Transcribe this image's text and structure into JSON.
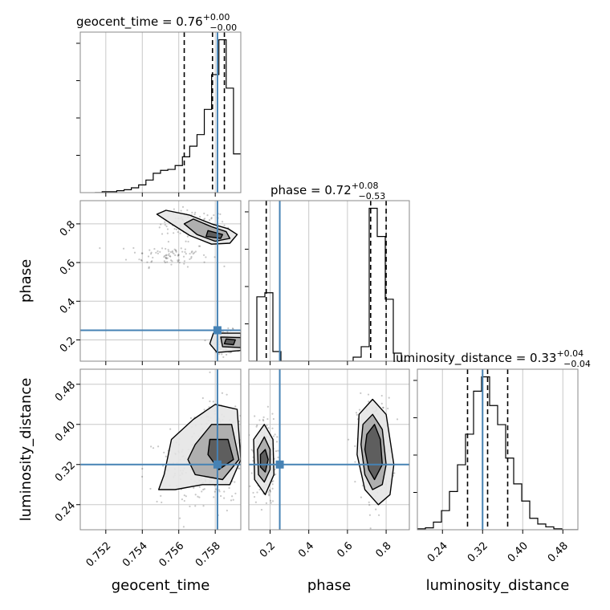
{
  "chart_data": {
    "type": "corner",
    "parameters": [
      "geocent_time",
      "phase",
      "luminosity_distance"
    ],
    "truths": {
      "geocent_time": 0.75812,
      "phase": 0.25,
      "luminosity_distance": 0.32
    },
    "truth_color": "#4682b4",
    "titles": [
      {
        "param": "geocent_time",
        "main": "geocent_time = 0.76",
        "sup": "+0.00",
        "sub": "−0.00"
      },
      {
        "param": "phase",
        "main": "phase = 0.72",
        "sup": "+0.08",
        "sub": "−0.53"
      },
      {
        "param": "luminosity_distance",
        "main": "luminosity_distance = 0.33",
        "sup": "+0.04",
        "sub": "−0.04"
      }
    ],
    "axis_labels": {
      "geocent_time": "geocent_time",
      "phase": "phase",
      "luminosity_distance": "luminosity_distance"
    },
    "ranges": {
      "geocent_time": [
        0.7506,
        0.7594
      ],
      "phase": [
        0.09,
        0.92
      ],
      "luminosity_distance": [
        0.19,
        0.51
      ]
    },
    "ticks": {
      "geocent_time": [
        "0.752",
        "0.754",
        "0.756",
        "0.758"
      ],
      "phase": [
        "0.2",
        "0.4",
        "0.6",
        "0.8"
      ],
      "luminosity_distance": [
        "0.24",
        "0.32",
        "0.40",
        "0.48"
      ]
    },
    "tick_values": {
      "geocent_time": [
        0.752,
        0.754,
        0.756,
        0.758
      ],
      "phase": [
        0.2,
        0.4,
        0.6,
        0.8
      ],
      "luminosity_distance": [
        0.24,
        0.32,
        0.4,
        0.48
      ]
    },
    "quantiles": {
      "geocent_time": [
        0.7563,
        0.75785,
        0.7585
      ],
      "phase": [
        0.18,
        0.72,
        0.8
      ],
      "luminosity_distance": [
        0.29,
        0.33,
        0.37
      ]
    },
    "histograms": {
      "geocent_time": {
        "edges": [
          0.7514,
          0.7518,
          0.7522,
          0.7526,
          0.753,
          0.7534,
          0.7538,
          0.7542,
          0.7546,
          0.755,
          0.7554,
          0.7558,
          0.7562,
          0.7566,
          0.757,
          0.7574,
          0.7578,
          0.7582,
          0.7586,
          0.759,
          0.7594
        ],
        "counts": [
          0,
          1,
          1,
          2,
          3,
          5,
          8,
          13,
          20,
          23,
          24,
          28,
          37,
          48,
          60,
          86,
          122,
          158,
          108,
          40
        ]
      },
      "phase": {
        "edges": [
          0.09,
          0.1315,
          0.173,
          0.2145,
          0.256,
          0.2975,
          0.339,
          0.3805,
          0.422,
          0.4635,
          0.505,
          0.5465,
          0.588,
          0.6295,
          0.671,
          0.7125,
          0.754,
          0.7955,
          0.837,
          0.8785,
          0.92
        ],
        "counts": [
          0,
          80,
          85,
          12,
          0,
          0,
          0,
          0,
          0,
          0,
          0,
          0,
          0,
          5,
          18,
          190,
          155,
          77,
          10,
          0
        ]
      },
      "luminosity_distance": {
        "edges": [
          0.19,
          0.206,
          0.222,
          0.238,
          0.254,
          0.27,
          0.286,
          0.302,
          0.318,
          0.334,
          0.35,
          0.366,
          0.382,
          0.398,
          0.414,
          0.43,
          0.446,
          0.462,
          0.478,
          0.494,
          0.51
        ],
        "counts": [
          1,
          2,
          8,
          20,
          40,
          68,
          100,
          145,
          160,
          130,
          110,
          75,
          48,
          30,
          12,
          6,
          3,
          1,
          0,
          0
        ]
      }
    },
    "scatter_clusters": [
      {
        "pair": [
          "geocent_time",
          "phase"
        ],
        "center": [
          0.7568,
          0.8
        ],
        "spread": [
          0.0009,
          0.035
        ],
        "n": 120
      },
      {
        "pair": [
          "geocent_time",
          "phase"
        ],
        "center": [
          0.7555,
          0.64
        ],
        "spread": [
          0.0011,
          0.03
        ],
        "n": 90
      },
      {
        "pair": [
          "geocent_time",
          "phase"
        ],
        "center": [
          0.7586,
          0.19
        ],
        "spread": [
          0.0004,
          0.03
        ],
        "n": 110
      },
      {
        "pair": [
          "geocent_time",
          "luminosity_distance"
        ],
        "center": [
          0.7581,
          0.34
        ],
        "spread": [
          0.0009,
          0.05
        ],
        "n": 260
      },
      {
        "pair": [
          "geocent_time",
          "luminosity_distance"
        ],
        "center": [
          0.7565,
          0.31
        ],
        "spread": [
          0.0012,
          0.04
        ],
        "n": 90
      },
      {
        "pair": [
          "phase",
          "luminosity_distance"
        ],
        "center": [
          0.17,
          0.33
        ],
        "spread": [
          0.03,
          0.045
        ],
        "n": 170
      },
      {
        "pair": [
          "phase",
          "luminosity_distance"
        ],
        "center": [
          0.74,
          0.35
        ],
        "spread": [
          0.045,
          0.05
        ],
        "n": 200
      }
    ],
    "contours": [
      {
        "pair": [
          "geocent_time",
          "phase"
        ],
        "levels": [
          [
            [
              0.7553,
              0.87
            ],
            [
              0.7566,
              0.845
            ],
            [
              0.7578,
              0.8
            ],
            [
              0.7587,
              0.775
            ],
            [
              0.7592,
              0.745
            ],
            [
              0.7588,
              0.7
            ],
            [
              0.7578,
              0.695
            ],
            [
              0.7566,
              0.74
            ],
            [
              0.7556,
              0.8
            ],
            [
              0.7548,
              0.85
            ]
          ],
          [
            [
              0.7568,
              0.825
            ],
            [
              0.7578,
              0.785
            ],
            [
              0.7586,
              0.76
            ],
            [
              0.7588,
              0.725
            ],
            [
              0.758,
              0.71
            ],
            [
              0.757,
              0.745
            ],
            [
              0.7563,
              0.8
            ]
          ],
          [
            [
              0.7576,
              0.765
            ],
            [
              0.7584,
              0.745
            ],
            [
              0.7583,
              0.725
            ],
            [
              0.7575,
              0.735
            ]
          ]
        ]
      },
      {
        "pair": [
          "geocent_time",
          "phase"
        ],
        "levels": [
          [
            [
              0.7579,
              0.235
            ],
            [
              0.7594,
              0.235
            ],
            [
              0.7594,
              0.145
            ],
            [
              0.7581,
              0.135
            ],
            [
              0.7577,
              0.18
            ]
          ],
          [
            [
              0.7583,
              0.215
            ],
            [
              0.7594,
              0.212
            ],
            [
              0.7594,
              0.16
            ],
            [
              0.7584,
              0.165
            ]
          ],
          [
            [
              0.7586,
              0.205
            ],
            [
              0.7591,
              0.2
            ],
            [
              0.759,
              0.175
            ],
            [
              0.7585,
              0.18
            ]
          ]
        ]
      },
      {
        "pair": [
          "geocent_time",
          "luminosity_distance"
        ],
        "levels": [
          [
            [
              0.7552,
              0.3
            ],
            [
              0.7556,
              0.37
            ],
            [
              0.7568,
              0.41
            ],
            [
              0.758,
              0.44
            ],
            [
              0.7592,
              0.43
            ],
            [
              0.7594,
              0.33
            ],
            [
              0.7588,
              0.28
            ],
            [
              0.7573,
              0.28
            ],
            [
              0.7558,
              0.27
            ],
            [
              0.7549,
              0.27
            ]
          ],
          [
            [
              0.7569,
              0.36
            ],
            [
              0.7578,
              0.4
            ],
            [
              0.7589,
              0.4
            ],
            [
              0.7593,
              0.33
            ],
            [
              0.7584,
              0.29
            ],
            [
              0.7569,
              0.3
            ],
            [
              0.7565,
              0.33
            ]
          ],
          [
            [
              0.7577,
              0.37
            ],
            [
              0.7587,
              0.37
            ],
            [
              0.759,
              0.33
            ],
            [
              0.7582,
              0.31
            ],
            [
              0.7576,
              0.34
            ]
          ]
        ]
      },
      {
        "pair": [
          "phase",
          "luminosity_distance"
        ],
        "levels": [
          [
            [
              0.115,
              0.37
            ],
            [
              0.17,
              0.4
            ],
            [
              0.215,
              0.37
            ],
            [
              0.22,
              0.3
            ],
            [
              0.175,
              0.26
            ],
            [
              0.12,
              0.29
            ]
          ],
          [
            [
              0.135,
              0.35
            ],
            [
              0.17,
              0.375
            ],
            [
              0.2,
              0.35
            ],
            [
              0.2,
              0.31
            ],
            [
              0.17,
              0.285
            ],
            [
              0.14,
              0.3
            ]
          ],
          [
            [
              0.15,
              0.34
            ],
            [
              0.175,
              0.35
            ],
            [
              0.19,
              0.33
            ],
            [
              0.175,
              0.305
            ],
            [
              0.15,
              0.315
            ]
          ]
        ]
      },
      {
        "pair": [
          "phase",
          "luminosity_distance"
        ],
        "levels": [
          [
            [
              0.66,
              0.42
            ],
            [
              0.73,
              0.45
            ],
            [
              0.8,
              0.42
            ],
            [
              0.84,
              0.32
            ],
            [
              0.82,
              0.26
            ],
            [
              0.76,
              0.24
            ],
            [
              0.69,
              0.27
            ],
            [
              0.65,
              0.34
            ]
          ],
          [
            [
              0.68,
              0.4
            ],
            [
              0.73,
              0.42
            ],
            [
              0.78,
              0.39
            ],
            [
              0.8,
              0.32
            ],
            [
              0.78,
              0.28
            ],
            [
              0.73,
              0.27
            ],
            [
              0.69,
              0.3
            ],
            [
              0.67,
              0.36
            ]
          ],
          [
            [
              0.7,
              0.38
            ],
            [
              0.74,
              0.4
            ],
            [
              0.77,
              0.37
            ],
            [
              0.78,
              0.32
            ],
            [
              0.74,
              0.29
            ],
            [
              0.71,
              0.31
            ],
            [
              0.69,
              0.35
            ]
          ]
        ]
      }
    ]
  }
}
